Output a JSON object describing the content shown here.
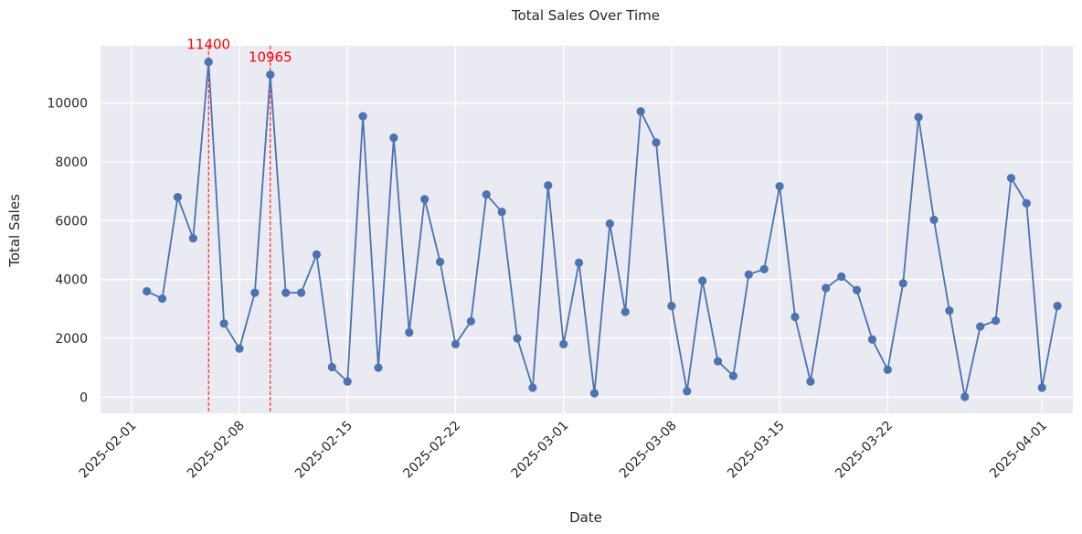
{
  "chart_data": {
    "type": "line",
    "title": "Total Sales Over Time",
    "xlabel": "Date",
    "ylabel": "Total Sales",
    "xlim": [
      "2025-01-30",
      "2025-04-03"
    ],
    "ylim": [
      -550,
      11950
    ],
    "grid": true,
    "x_ticks": [
      "2025-02-01",
      "2025-02-08",
      "2025-02-15",
      "2025-02-22",
      "2025-03-01",
      "2025-03-08",
      "2025-03-15",
      "2025-03-22",
      "2025-04-01"
    ],
    "y_ticks": [
      "0",
      "2000",
      "4000",
      "6000",
      "8000",
      "10000"
    ],
    "series": [
      {
        "color": "#4c72b0",
        "x": [
          "2025-02-02",
          "2025-02-03",
          "2025-02-04",
          "2025-02-05",
          "2025-02-06",
          "2025-02-07",
          "2025-02-08",
          "2025-02-09",
          "2025-02-10",
          "2025-02-11",
          "2025-02-12",
          "2025-02-13",
          "2025-02-14",
          "2025-02-15",
          "2025-02-16",
          "2025-02-17",
          "2025-02-18",
          "2025-02-19",
          "2025-02-20",
          "2025-02-21",
          "2025-02-22",
          "2025-02-23",
          "2025-02-24",
          "2025-02-25",
          "2025-02-26",
          "2025-02-27",
          "2025-02-28",
          "2025-03-01",
          "2025-03-02",
          "2025-03-03",
          "2025-03-04",
          "2025-03-05",
          "2025-03-06",
          "2025-03-07",
          "2025-03-08",
          "2025-03-09",
          "2025-03-10",
          "2025-03-11",
          "2025-03-12",
          "2025-03-13",
          "2025-03-14",
          "2025-03-15",
          "2025-03-16",
          "2025-03-17",
          "2025-03-18",
          "2025-03-19",
          "2025-03-20",
          "2025-03-21",
          "2025-03-22",
          "2025-03-23",
          "2025-03-24",
          "2025-03-25",
          "2025-03-26",
          "2025-03-27",
          "2025-03-28",
          "2025-03-29",
          "2025-03-30",
          "2025-03-31",
          "2025-04-01",
          "2025-04-02"
        ],
        "values": [
          3600,
          3350,
          6800,
          5400,
          11400,
          2500,
          1650,
          3550,
          10965,
          3550,
          3550,
          4850,
          1020,
          530,
          9550,
          1000,
          8820,
          2200,
          6730,
          4600,
          1800,
          2580,
          6890,
          6300,
          2000,
          320,
          7200,
          1800,
          4570,
          130,
          5900,
          2900,
          9720,
          8660,
          3100,
          200,
          3960,
          1220,
          720,
          4170,
          4350,
          7170,
          2730,
          530,
          3710,
          4100,
          3640,
          1960,
          930,
          3870,
          9520,
          6030,
          2940,
          10,
          2400,
          2600,
          7450,
          6590,
          320,
          3100
        ]
      }
    ],
    "annotations": [
      {
        "x": "2025-02-06",
        "y": 11400,
        "text": "11400",
        "color": "#ff0000",
        "line": "dashed-vertical"
      },
      {
        "x": "2025-02-10",
        "y": 10965,
        "text": "10965",
        "color": "#ff0000",
        "line": "dashed-vertical"
      }
    ]
  }
}
